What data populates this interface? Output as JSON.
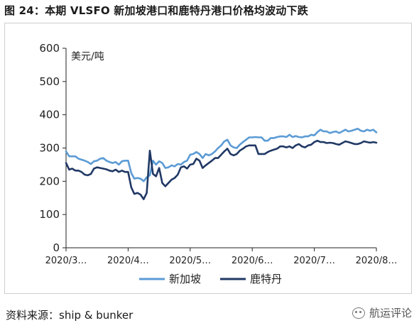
{
  "title": "图 24：本期 VLSFO 新加坡港口和鹿特丹港口价格均波动下跌",
  "source": "资料来源：ship & bunker",
  "watermark": {
    "text": "航运评论",
    "icon": "wechat-icon"
  },
  "chart_data": {
    "type": "line",
    "title": "",
    "unit_label": "美元/吨",
    "ylim": [
      0,
      600
    ],
    "yticks": [
      0,
      100,
      200,
      300,
      400,
      500,
      600
    ],
    "xlim": [
      0,
      100
    ],
    "xticks": [
      {
        "pos": 0,
        "label": "2020/3…"
      },
      {
        "pos": 20,
        "label": "2020/4…"
      },
      {
        "pos": 40,
        "label": "2020/5…"
      },
      {
        "pos": 60,
        "label": "2020/6…"
      },
      {
        "pos": 80,
        "label": "2020/7…"
      },
      {
        "pos": 100,
        "label": "2020/8…"
      }
    ],
    "grid": false,
    "legend_position": "bottom",
    "series": [
      {
        "name": "新加坡",
        "color": "#5b9bd5",
        "x": [
          0,
          1,
          2,
          3,
          4,
          5,
          6,
          7,
          8,
          9,
          10,
          11,
          12,
          13,
          14,
          15,
          16,
          17,
          18,
          19,
          20,
          21,
          22,
          23,
          24,
          25,
          26,
          27,
          28,
          29,
          30,
          31,
          32,
          33,
          34,
          35,
          36,
          37,
          38,
          39,
          40,
          41,
          42,
          43,
          44,
          45,
          46,
          47,
          48,
          49,
          50,
          51,
          52,
          53,
          54,
          55,
          56,
          57,
          58,
          59,
          60,
          61,
          62,
          63,
          64,
          65,
          66,
          67,
          68,
          69,
          70,
          71,
          72,
          73,
          74,
          75,
          76,
          77,
          78,
          79,
          80,
          81,
          82,
          83,
          84,
          85,
          86,
          87,
          88,
          89,
          90,
          91,
          92,
          93,
          94,
          95,
          96,
          97,
          98,
          99,
          100
        ],
        "values": [
          290,
          275,
          275,
          275,
          268,
          265,
          262,
          258,
          252,
          260,
          262,
          268,
          270,
          262,
          258,
          255,
          258,
          250,
          260,
          262,
          262,
          225,
          208,
          210,
          208,
          200,
          212,
          218,
          262,
          250,
          260,
          255,
          240,
          242,
          248,
          245,
          252,
          250,
          258,
          262,
          280,
          282,
          288,
          282,
          270,
          282,
          278,
          282,
          290,
          300,
          308,
          320,
          325,
          308,
          302,
          300,
          310,
          318,
          325,
          332,
          332,
          333,
          332,
          332,
          322,
          322,
          330,
          330,
          333,
          335,
          335,
          333,
          340,
          333,
          336,
          333,
          332,
          335,
          335,
          340,
          338,
          348,
          355,
          350,
          350,
          345,
          348,
          350,
          345,
          350,
          355,
          350,
          352,
          355,
          358,
          352,
          350,
          355,
          352,
          355,
          347
        ]
      },
      {
        "name": "鹿特丹",
        "color": "#203864",
        "x": [
          0,
          1,
          2,
          3,
          4,
          5,
          6,
          7,
          8,
          9,
          10,
          11,
          12,
          13,
          14,
          15,
          16,
          17,
          18,
          19,
          20,
          21,
          22,
          23,
          24,
          25,
          26,
          27,
          28,
          29,
          30,
          31,
          32,
          33,
          34,
          35,
          36,
          37,
          38,
          39,
          40,
          41,
          42,
          43,
          44,
          45,
          46,
          47,
          48,
          49,
          50,
          51,
          52,
          53,
          54,
          55,
          56,
          57,
          58,
          59,
          60,
          61,
          62,
          63,
          64,
          65,
          66,
          67,
          68,
          69,
          70,
          71,
          72,
          73,
          74,
          75,
          76,
          77,
          78,
          79,
          80,
          81,
          82,
          83,
          84,
          85,
          86,
          87,
          88,
          89,
          90,
          91,
          92,
          93,
          94,
          95,
          96,
          97,
          98,
          99,
          100
        ],
        "values": [
          255,
          235,
          238,
          232,
          232,
          228,
          220,
          218,
          222,
          238,
          242,
          240,
          238,
          236,
          232,
          230,
          235,
          228,
          232,
          228,
          228,
          182,
          162,
          165,
          160,
          146,
          165,
          292,
          222,
          215,
          240,
          195,
          185,
          195,
          205,
          210,
          220,
          242,
          245,
          238,
          250,
          252,
          268,
          262,
          240,
          248,
          255,
          262,
          270,
          270,
          280,
          290,
          298,
          282,
          278,
          282,
          292,
          298,
          305,
          308,
          308,
          308,
          282,
          282,
          282,
          288,
          292,
          295,
          298,
          305,
          305,
          302,
          305,
          300,
          308,
          312,
          305,
          302,
          308,
          310,
          318,
          322,
          318,
          318,
          315,
          316,
          315,
          312,
          310,
          315,
          320,
          318,
          315,
          312,
          312,
          315,
          320,
          318,
          316,
          318,
          316
        ]
      }
    ]
  }
}
